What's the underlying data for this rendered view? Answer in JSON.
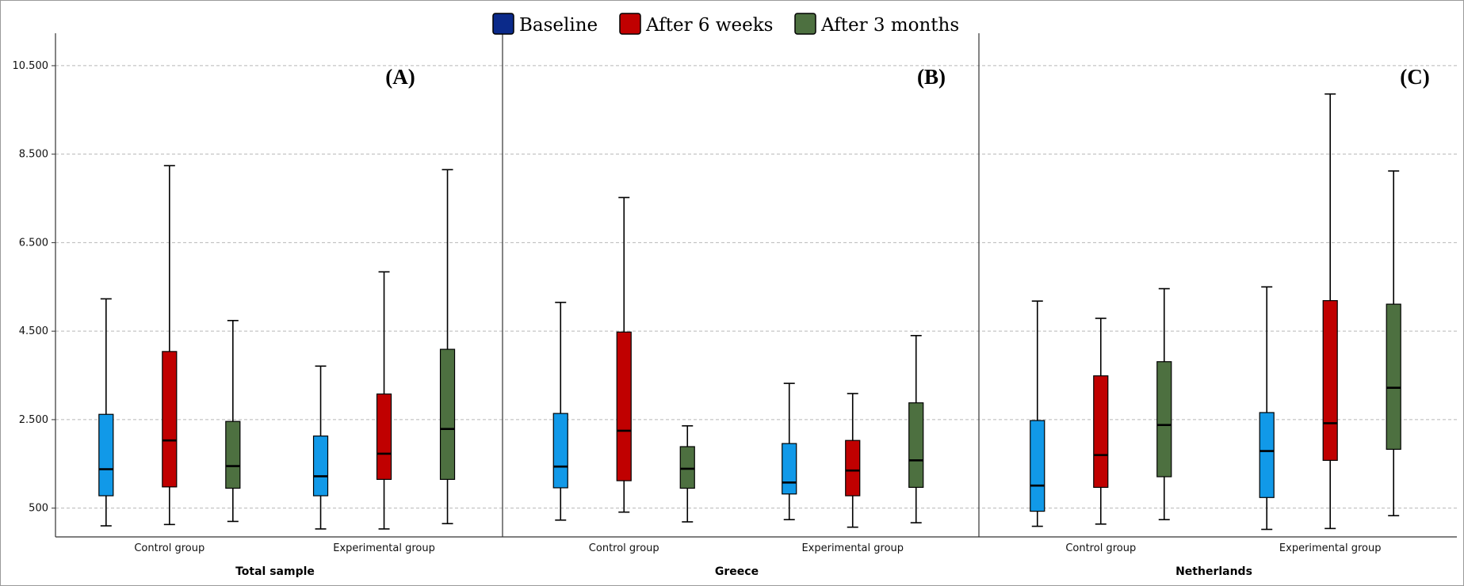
{
  "chart_data": {
    "type": "boxplot",
    "legend": {
      "placement": "top-center",
      "entries": [
        {
          "name": "Baseline",
          "color": "#0b2a8a"
        },
        {
          "name": "After 6 weeks",
          "color": "#c00000"
        },
        {
          "name": "After 3 months",
          "color": "#4d7040"
        }
      ]
    },
    "y_ticks": [
      500,
      2500,
      4500,
      6500,
      8500,
      10500
    ],
    "y_tick_labels": [
      "500",
      "2.500",
      "4.500",
      "6.500",
      "8.500",
      "10.500"
    ],
    "ylim": [
      -150,
      11000
    ],
    "grid": true,
    "series_colors": [
      "#1199e8",
      "#c00000",
      "#4d7040"
    ],
    "panels": [
      {
        "label": "(A)",
        "title": "Total sample",
        "categories": [
          "Control group",
          "Experimental group"
        ],
        "groups": [
          {
            "category": "Control group",
            "boxes": [
              {
                "series": "Baseline",
                "min": 100,
                "q1": 780,
                "median": 1380,
                "q3": 2620,
                "max": 5230
              },
              {
                "series": "After 6 weeks",
                "min": 130,
                "q1": 980,
                "median": 2030,
                "q3": 4040,
                "max": 8240
              },
              {
                "series": "After 3 months",
                "min": 200,
                "q1": 950,
                "median": 1450,
                "q3": 2460,
                "max": 4740
              }
            ]
          },
          {
            "category": "Experimental group",
            "boxes": [
              {
                "series": "Baseline",
                "min": 30,
                "q1": 780,
                "median": 1220,
                "q3": 2130,
                "max": 3710
              },
              {
                "series": "After 6 weeks",
                "min": 30,
                "q1": 1150,
                "median": 1730,
                "q3": 3080,
                "max": 5840
              },
              {
                "series": "After 3 months",
                "min": 150,
                "q1": 1150,
                "median": 2290,
                "q3": 4090,
                "max": 8150
              }
            ]
          }
        ]
      },
      {
        "label": "(B)",
        "title": "Greece",
        "categories": [
          "Control group",
          "Experimental group"
        ],
        "groups": [
          {
            "category": "Control group",
            "boxes": [
              {
                "series": "Baseline",
                "min": 230,
                "q1": 960,
                "median": 1440,
                "q3": 2640,
                "max": 5150
              },
              {
                "series": "After 6 weeks",
                "min": 410,
                "q1": 1120,
                "median": 2250,
                "q3": 4480,
                "max": 7520
              },
              {
                "series": "After 3 months",
                "min": 190,
                "q1": 950,
                "median": 1390,
                "q3": 1890,
                "max": 2360
              }
            ]
          },
          {
            "category": "Experimental group",
            "boxes": [
              {
                "series": "Baseline",
                "min": 240,
                "q1": 820,
                "median": 1080,
                "q3": 1960,
                "max": 3320
              },
              {
                "series": "After 6 weeks",
                "min": 70,
                "q1": 780,
                "median": 1350,
                "q3": 2030,
                "max": 3090
              },
              {
                "series": "After 3 months",
                "min": 170,
                "q1": 970,
                "median": 1580,
                "q3": 2880,
                "max": 4400
              }
            ]
          }
        ]
      },
      {
        "label": "(C)",
        "title": "Netherlands",
        "categories": [
          "Control group",
          "Experimental group"
        ],
        "groups": [
          {
            "category": "Control group",
            "boxes": [
              {
                "series": "Baseline",
                "min": 90,
                "q1": 430,
                "median": 1010,
                "q3": 2480,
                "max": 5180
              },
              {
                "series": "After 6 weeks",
                "min": 140,
                "q1": 970,
                "median": 1700,
                "q3": 3490,
                "max": 4790
              },
              {
                "series": "After 3 months",
                "min": 240,
                "q1": 1210,
                "median": 2380,
                "q3": 3810,
                "max": 5460
              }
            ]
          },
          {
            "category": "Experimental group",
            "boxes": [
              {
                "series": "Baseline",
                "min": 20,
                "q1": 740,
                "median": 1790,
                "q3": 2660,
                "max": 5500
              },
              {
                "series": "After 6 weeks",
                "min": 40,
                "q1": 1580,
                "median": 2420,
                "q3": 5190,
                "max": 9860
              },
              {
                "series": "After 3 months",
                "min": 330,
                "q1": 1830,
                "median": 3220,
                "q3": 5110,
                "max": 8120
              }
            ]
          }
        ]
      }
    ]
  }
}
